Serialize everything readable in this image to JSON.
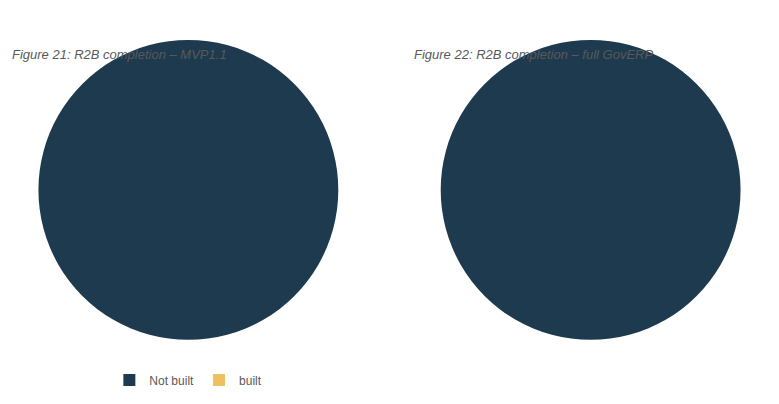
{
  "chart_data": [
    {
      "type": "pie",
      "title": "Figure 21: R2B completion – MVP1.1",
      "categories": [
        "Not built",
        "built"
      ],
      "values": [
        100,
        0.0001
      ],
      "colors": [
        "#1e3a4f",
        "#f0c060"
      ],
      "legend": "bottom"
    },
    {
      "type": "pie",
      "title": "Figure 22: R2B completion – full GovERP",
      "categories": [
        "Not built",
        "built"
      ],
      "values": [
        100,
        0.0001
      ],
      "colors": [
        "#1e3a4f",
        "#f0c060"
      ],
      "legend": "bottom"
    }
  ]
}
